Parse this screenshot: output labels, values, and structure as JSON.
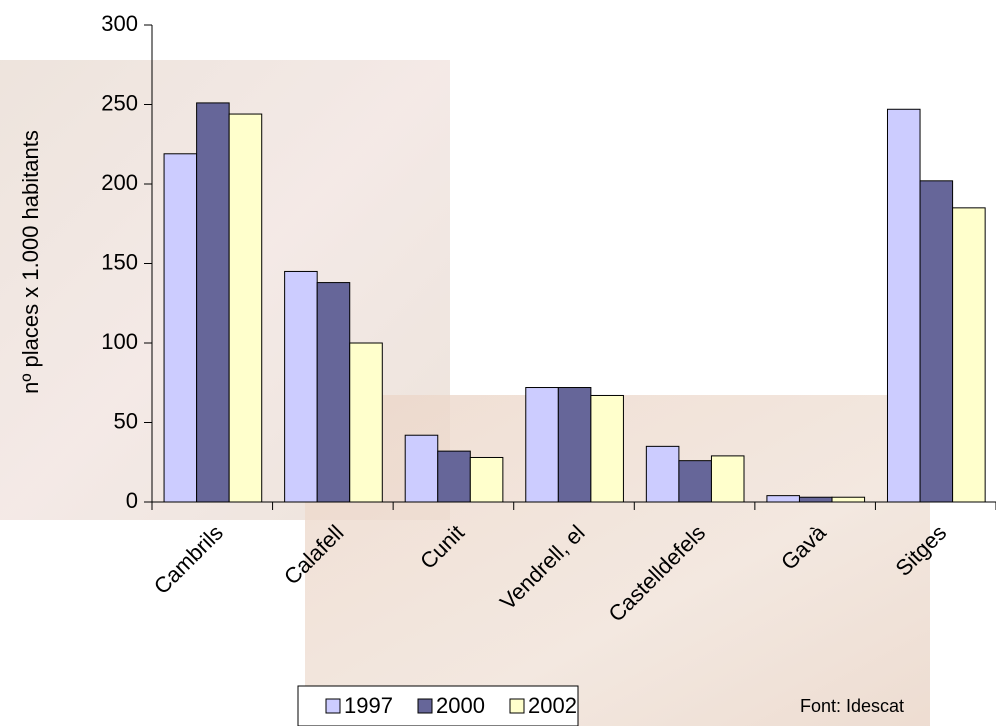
{
  "chart_data": {
    "type": "bar",
    "y_label": "nº places x 1.000 habitants",
    "categories": [
      "Cambrils",
      "Calafell",
      "Cunit",
      "Vendrell, el",
      "Castelldefels",
      "Gavà",
      "Sitges"
    ],
    "series": [
      {
        "name": "1997",
        "color": "#ccccff",
        "values": [
          219,
          145,
          42,
          72,
          35,
          4,
          247
        ]
      },
      {
        "name": "2000",
        "color": "#666699",
        "values": [
          251,
          138,
          32,
          72,
          26,
          3,
          202
        ]
      },
      {
        "name": "2002",
        "color": "#ffffcc",
        "values": [
          244,
          100,
          28,
          67,
          29,
          3,
          185
        ]
      }
    ],
    "ylim": [
      0,
      300
    ],
    "yticks": [
      0,
      50,
      100,
      150,
      200,
      250,
      300
    ],
    "source": "Font: Idescat"
  }
}
